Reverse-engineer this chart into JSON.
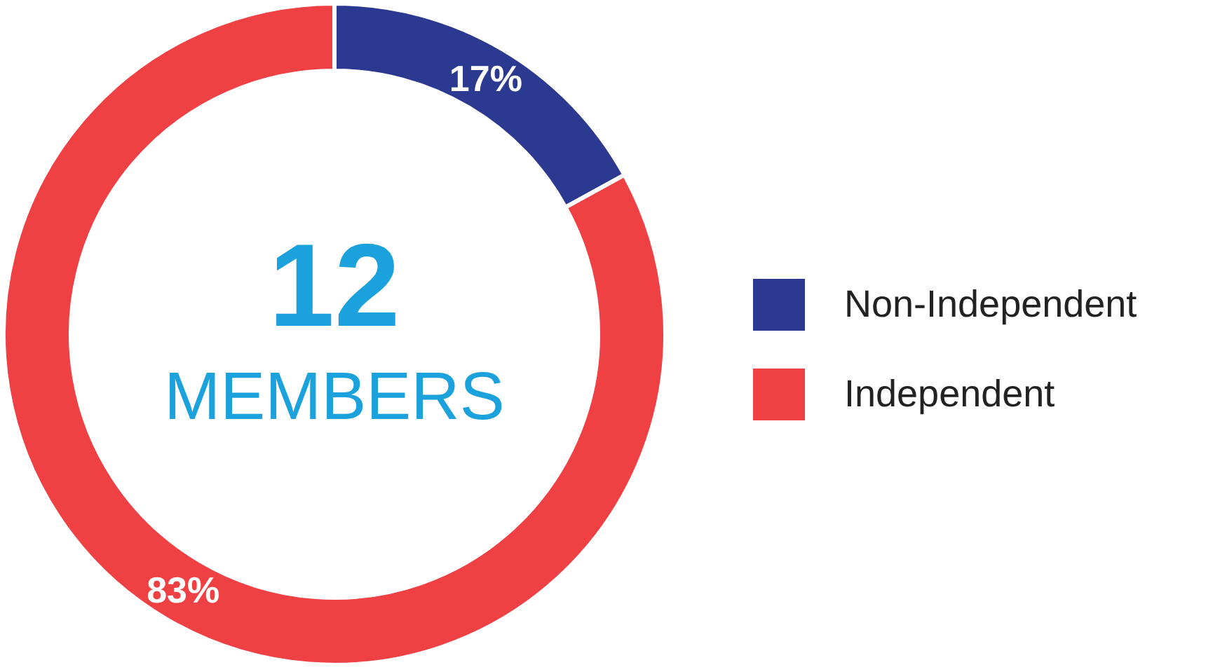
{
  "chart_data": {
    "type": "donut",
    "categories": [
      "Non-Independent",
      "Independent"
    ],
    "values": [
      17,
      83
    ],
    "colors": [
      "#2b3990",
      "#ef4044"
    ],
    "value_labels": [
      "17%",
      "83%"
    ],
    "legend": "right",
    "annotations": [
      "12",
      "MEMBERS"
    ]
  }
}
